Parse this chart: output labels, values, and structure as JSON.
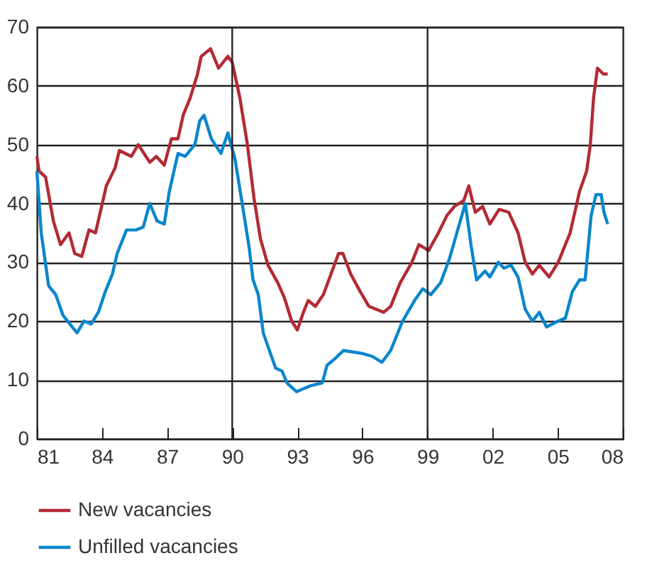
{
  "chart_data": {
    "type": "line",
    "xlim": [
      1981,
      2008
    ],
    "xticks": [
      {
        "value": 1981,
        "label": "81"
      },
      {
        "value": 1984,
        "label": "84"
      },
      {
        "value": 1987,
        "label": "87"
      },
      {
        "value": 1990,
        "label": "90"
      },
      {
        "value": 1993,
        "label": "93"
      },
      {
        "value": 1996,
        "label": "96"
      },
      {
        "value": 1999,
        "label": "99"
      },
      {
        "value": 2002,
        "label": "02"
      },
      {
        "value": 2005,
        "label": "05"
      },
      {
        "value": 2008,
        "label": "08"
      }
    ],
    "ylim": [
      0,
      70
    ],
    "yticks": [
      0,
      10,
      20,
      30,
      40,
      50,
      60,
      70
    ],
    "grid": "y",
    "legend": "bottom",
    "ref_lines": [
      {
        "axis": "x",
        "value": 1990,
        "color": "#222222"
      },
      {
        "axis": "x",
        "value": 1999,
        "color": "#222222"
      }
    ],
    "series": [
      {
        "name": "New vacancies",
        "color": "#b22a33",
        "x": [
          1981.0,
          1981.1,
          1981.4,
          1981.76,
          1982.09,
          1982.48,
          1982.74,
          1983.07,
          1983.4,
          1983.7,
          1984.2,
          1984.6,
          1984.8,
          1985.35,
          1985.67,
          1986.2,
          1986.5,
          1986.87,
          1987.2,
          1987.5,
          1987.74,
          1988.07,
          1988.4,
          1988.57,
          1989.0,
          1989.37,
          1989.8,
          1990.0,
          1990.35,
          1990.7,
          1991.0,
          1991.3,
          1991.65,
          1992.1,
          1992.4,
          1992.74,
          1993.0,
          1993.28,
          1993.5,
          1993.83,
          1994.2,
          1994.5,
          1994.9,
          1995.1,
          1995.46,
          1995.9,
          1996.3,
          1996.98,
          1997.3,
          1997.74,
          1998.28,
          1998.6,
          1999.05,
          1999.5,
          1999.9,
          2000.24,
          2000.67,
          2000.9,
          2001.2,
          2001.54,
          2001.87,
          2002.3,
          2002.74,
          2003.17,
          2003.5,
          2003.83,
          2004.15,
          2004.6,
          2005.02,
          2005.57,
          2006.0,
          2006.33,
          2006.5,
          2006.65,
          2006.83,
          2007.1,
          2007.3
        ],
        "values": [
          48,
          45.5,
          44.5,
          37,
          33,
          35,
          31.5,
          31,
          35.5,
          35,
          43,
          46,
          49,
          48,
          50,
          47,
          48,
          46.5,
          51,
          51,
          55,
          58,
          62,
          65,
          66.3,
          63,
          65,
          64,
          58,
          50,
          41,
          34,
          29.5,
          26.5,
          24,
          20,
          18.5,
          21.5,
          23.5,
          22.5,
          24.5,
          27.5,
          31.5,
          31.5,
          28,
          25,
          22.5,
          21.5,
          22.5,
          26.5,
          30,
          33,
          32,
          35,
          38,
          39.5,
          40.5,
          43,
          38.5,
          39.5,
          36.5,
          39,
          38.5,
          35,
          30,
          28,
          29.5,
          27.5,
          30,
          35,
          42,
          45.5,
          50,
          58,
          63,
          62,
          62
        ]
      },
      {
        "name": "Unfilled vacancies",
        "color": "#0a86cc",
        "x": [
          1981.0,
          1981.2,
          1981.54,
          1981.87,
          1982.2,
          1982.52,
          1982.85,
          1983.17,
          1983.5,
          1983.83,
          1984.15,
          1984.48,
          1984.7,
          1985.13,
          1985.57,
          1985.9,
          1986.2,
          1986.54,
          1986.87,
          1987.1,
          1987.5,
          1987.83,
          1988.28,
          1988.5,
          1988.7,
          1989.04,
          1989.48,
          1989.8,
          1990.13,
          1990.46,
          1990.78,
          1990.96,
          1991.2,
          1991.43,
          1991.76,
          1992.0,
          1992.3,
          1992.52,
          1992.96,
          1993.28,
          1993.6,
          1994.15,
          1994.37,
          1994.7,
          1995.13,
          1996.0,
          1996.46,
          1996.9,
          1997.3,
          1997.85,
          1998.4,
          1998.78,
          1999.15,
          1999.6,
          2000.0,
          2000.35,
          2000.74,
          2001.0,
          2001.26,
          2001.65,
          2001.87,
          2002.26,
          2002.52,
          2002.85,
          2003.17,
          2003.5,
          2003.83,
          2004.15,
          2004.48,
          2005.02,
          2005.35,
          2005.67,
          2006.0,
          2006.26,
          2006.54,
          2006.76,
          2007.0,
          2007.13,
          2007.3
        ],
        "values": [
          45.5,
          35,
          26,
          24.5,
          21,
          19.5,
          18,
          20,
          19.5,
          21.5,
          25,
          28,
          31.5,
          35.5,
          35.5,
          36,
          40,
          37,
          36.5,
          42,
          48.5,
          48,
          50,
          54,
          55,
          51,
          48.5,
          52,
          47.5,
          40,
          32.5,
          27,
          24.5,
          18,
          14.5,
          12,
          11.5,
          9.5,
          8,
          8.5,
          9,
          9.5,
          12.5,
          13.5,
          15,
          14.5,
          14,
          13,
          15,
          20,
          23.5,
          25.5,
          24.5,
          26.5,
          30.5,
          35,
          40,
          33,
          27,
          28.5,
          27.5,
          30,
          29,
          29.5,
          27.5,
          22,
          20,
          21.5,
          19,
          20,
          20.5,
          25,
          27,
          27,
          38,
          41.5,
          41.5,
          38.5,
          36.5
        ]
      }
    ]
  }
}
